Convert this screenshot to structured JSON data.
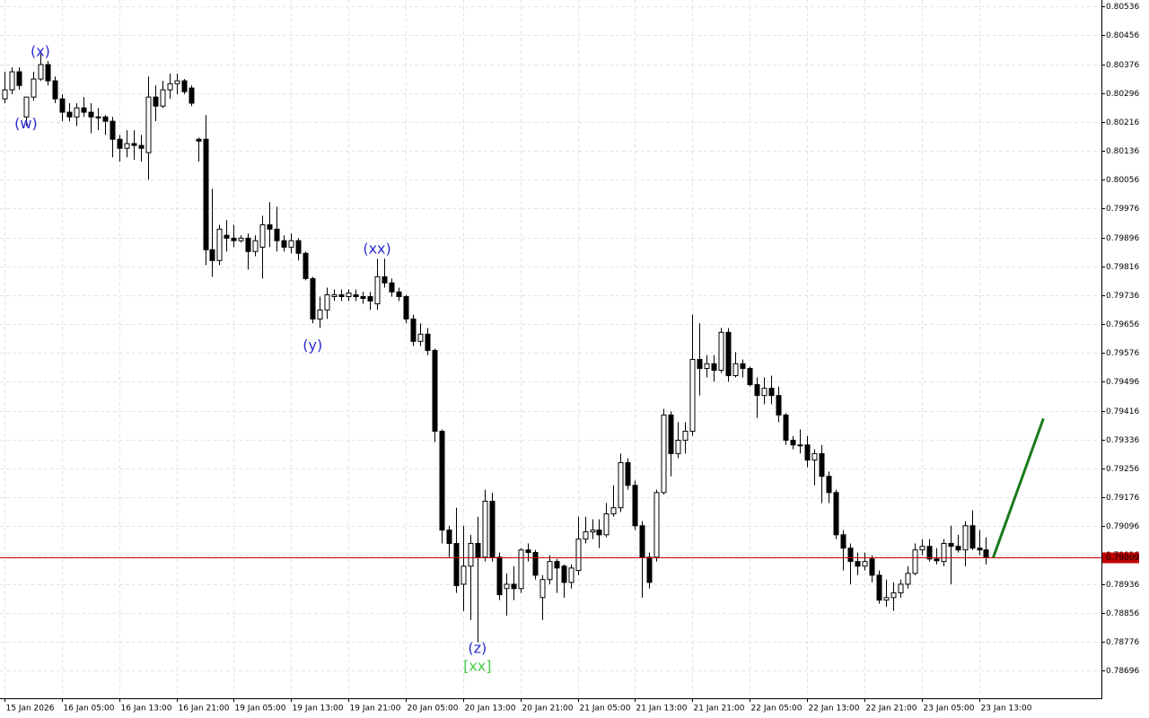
{
  "chart_data": {
    "type": "candlestick",
    "xlim": [
      -0.63,
      153.1
    ],
    "ylim": [
      0.78619,
      0.80554
    ],
    "xticks": [
      {
        "value": 0,
        "label": "15 Jan 2026"
      },
      {
        "value": 8,
        "label": "16 Jan 05:00"
      },
      {
        "value": 16,
        "label": "16 Jan 13:00"
      },
      {
        "value": 24,
        "label": "16 Jan 21:00"
      },
      {
        "value": 32,
        "label": "19 Jan 05:00"
      },
      {
        "value": 40,
        "label": "19 Jan 13:00"
      },
      {
        "value": 48,
        "label": "19 Jan 21:00"
      },
      {
        "value": 56,
        "label": "20 Jan 05:00"
      },
      {
        "value": 64,
        "label": "20 Jan 13:00"
      },
      {
        "value": 72,
        "label": "20 Jan 21:00"
      },
      {
        "value": 80,
        "label": "21 Jan 05:00"
      },
      {
        "value": 88,
        "label": "21 Jan 13:00"
      },
      {
        "value": 96,
        "label": "21 Jan 21:00"
      },
      {
        "value": 104,
        "label": "22 Jan 05:00"
      },
      {
        "value": 112,
        "label": "22 Jan 13:00"
      },
      {
        "value": 120,
        "label": "22 Jan 21:00"
      },
      {
        "value": 128,
        "label": "23 Jan 05:00"
      },
      {
        "value": 136,
        "label": "23 Jan 13:00"
      }
    ],
    "yticks": [
      0.80536,
      0.80456,
      0.80376,
      0.80296,
      0.80216,
      0.80136,
      0.80056,
      0.79976,
      0.79896,
      0.79816,
      0.79736,
      0.79656,
      0.79576,
      0.79496,
      0.79416,
      0.79336,
      0.79256,
      0.79176,
      0.79096,
      0.79016,
      0.78936,
      0.78856,
      0.78776,
      0.78696
    ],
    "grid": true,
    "up_color": "#ffffff",
    "down_color": "#000000",
    "open": [
      0.8028,
      0.80305,
      0.80355,
      0.8023,
      0.80285,
      0.80335,
      0.80375,
      0.8033,
      0.8028,
      0.80243,
      0.8023,
      0.80255,
      0.80243,
      0.8023,
      0.8023,
      0.80218,
      0.80168,
      0.80143,
      0.80156,
      0.80151,
      0.80131,
      0.80285,
      0.8026,
      0.80305,
      0.80322,
      0.8033,
      0.8031,
      0.80168,
      0.80168,
      0.79862,
      0.79832,
      0.79902,
      0.79894,
      0.79887,
      0.79894,
      0.79857,
      0.79869,
      0.79931,
      0.79919,
      0.79887,
      0.79869,
      0.79887,
      0.79852,
      0.79782,
      0.7967,
      0.79695,
      0.79732,
      0.79737,
      0.79732,
      0.79737,
      0.79732,
      0.79732,
      0.79712,
      0.79787,
      0.7977,
      0.79745,
      0.79732,
      0.7967,
      0.79608,
      0.79628,
      0.79583,
      0.79359,
      0.79085,
      0.79048,
      0.78935,
      0.78985,
      0.79048,
      0.7901,
      0.79165,
      0.7901,
      0.78923,
      0.78935,
      0.78923,
      0.7903,
      0.79023,
      0.78898,
      0.78948,
      0.78998,
      0.78985,
      0.7894,
      0.78973,
      0.7906,
      0.7908,
      0.79085,
      0.79072,
      0.7913,
      0.79147,
      0.79272,
      0.79209,
      0.79097,
      0.7901,
      0.7901,
      0.79189,
      0.79404,
      0.79297,
      0.79334,
      0.79359,
      0.79558,
      0.79533,
      0.79546,
      0.79528,
      0.79633,
      0.79513,
      0.79546,
      0.79533,
      0.79488,
      0.79458,
      0.79478,
      0.79458,
      0.79404,
      0.79334,
      0.79321,
      0.79321,
      0.79279,
      0.79297,
      0.79234,
      0.79189,
      0.79072,
      0.79035,
      0.78998,
      0.78985,
      0.79005,
      0.7896,
      0.78891,
      0.78898,
      0.78911,
      0.78935,
      0.78965,
      0.7903,
      0.7904,
      0.79005,
      0.78998,
      0.79048,
      0.7904,
      0.7903,
      0.79097,
      0.79035,
      0.7903
    ],
    "high": [
      0.80355,
      0.80367,
      0.80367,
      0.80285,
      0.80355,
      0.80405,
      0.80385,
      0.80342,
      0.80293,
      0.80268,
      0.80268,
      0.80285,
      0.80268,
      0.80255,
      0.80235,
      0.8023,
      0.8018,
      0.80193,
      0.80193,
      0.8018,
      0.80342,
      0.80317,
      0.8033,
      0.8035,
      0.8035,
      0.80335,
      0.80317,
      0.80173,
      0.80235,
      0.80031,
      0.79931,
      0.79944,
      0.79931,
      0.79902,
      0.79907,
      0.79902,
      0.79956,
      0.79994,
      0.79981,
      0.79902,
      0.79907,
      0.79894,
      0.79857,
      0.79787,
      0.79732,
      0.79757,
      0.79752,
      0.79752,
      0.79752,
      0.79752,
      0.79745,
      0.79745,
      0.79837,
      0.79837,
      0.79782,
      0.79757,
      0.79737,
      0.79682,
      0.79658,
      0.79645,
      0.79588,
      0.79364,
      0.79097,
      0.79147,
      0.79097,
      0.79072,
      0.79122,
      0.79197,
      0.79189,
      0.79023,
      0.78965,
      0.78985,
      0.79035,
      0.79048,
      0.7903,
      0.7896,
      0.79015,
      0.79005,
      0.7899,
      0.7899,
      0.79122,
      0.79122,
      0.79115,
      0.79115,
      0.7916,
      0.79209,
      0.79297,
      0.79284,
      0.79222,
      0.7911,
      0.79023,
      0.79197,
      0.79421,
      0.79414,
      0.79384,
      0.79384,
      0.79682,
      0.79658,
      0.7957,
      0.7957,
      0.79645,
      0.79645,
      0.79578,
      0.79558,
      0.79538,
      0.79508,
      0.79508,
      0.79513,
      0.79483,
      0.79409,
      0.79346,
      0.79364,
      0.79346,
      0.79309,
      0.79321,
      0.79247,
      0.79197,
      0.79085,
      0.79048,
      0.79023,
      0.79023,
      0.79015,
      0.78973,
      0.78948,
      0.7894,
      0.78948,
      0.78985,
      0.79048,
      0.7906,
      0.7906,
      0.79035,
      0.7906,
      0.79097,
      0.79072,
      0.7911,
      0.7914,
      0.79085,
      0.79065
    ],
    "low": [
      0.80268,
      0.80293,
      0.80305,
      0.80205,
      0.80275,
      0.8033,
      0.80317,
      0.80268,
      0.80218,
      0.80218,
      0.80205,
      0.8023,
      0.80185,
      0.80193,
      0.8018,
      0.80118,
      0.80106,
      0.80118,
      0.80111,
      0.80106,
      0.80056,
      0.80218,
      0.80255,
      0.8028,
      0.80293,
      0.80293,
      0.8026,
      0.80106,
      0.79819,
      0.79787,
      0.79819,
      0.79857,
      0.79869,
      0.79882,
      0.79807,
      0.79844,
      0.79782,
      0.79869,
      0.79857,
      0.79857,
      0.79852,
      0.79832,
      0.79777,
      0.79658,
      0.79645,
      0.7967,
      0.7972,
      0.7972,
      0.7972,
      0.7972,
      0.79712,
      0.79695,
      0.79695,
      0.79757,
      0.79732,
      0.7972,
      0.79658,
      0.79595,
      0.79595,
      0.7957,
      0.79329,
      0.79048,
      0.7901,
      0.78911,
      0.78861,
      0.78836,
      0.78774,
      0.78998,
      0.78998,
      0.78891,
      0.78848,
      0.78891,
      0.78911,
      0.78998,
      0.78948,
      0.78836,
      0.78935,
      0.78911,
      0.78898,
      0.78923,
      0.7896,
      0.79048,
      0.7906,
      0.79035,
      0.79065,
      0.79122,
      0.79135,
      0.79197,
      0.79085,
      0.78898,
      0.78923,
      0.78998,
      0.79184,
      0.79234,
      0.79284,
      0.79297,
      0.79346,
      0.79458,
      0.79508,
      0.79496,
      0.79521,
      0.79496,
      0.79508,
      0.79508,
      0.79483,
      0.79396,
      0.79434,
      0.79434,
      0.79384,
      0.79321,
      0.79309,
      0.79297,
      0.79259,
      0.79209,
      0.7916,
      0.7916,
      0.7906,
      0.78973,
      0.78935,
      0.7896,
      0.78973,
      0.7894,
      0.78881,
      0.78873,
      0.78861,
      0.78898,
      0.78923,
      0.7896,
      0.79015,
      0.78998,
      0.7899,
      0.78985,
      0.78935,
      0.79023,
      0.78985,
      0.7903,
      0.79015,
      0.7899
    ],
    "close": [
      0.80305,
      0.80355,
      0.80317,
      0.80285,
      0.80335,
      0.80375,
      0.8033,
      0.8028,
      0.80243,
      0.8023,
      0.80255,
      0.80243,
      0.8023,
      0.80228,
      0.80218,
      0.80168,
      0.80143,
      0.80156,
      0.80151,
      0.80143,
      0.80285,
      0.8026,
      0.80305,
      0.80322,
      0.8033,
      0.803,
      0.80268,
      0.80163,
      0.79862,
      0.79832,
      0.79919,
      0.79894,
      0.79887,
      0.79894,
      0.79857,
      0.79887,
      0.79931,
      0.79919,
      0.79887,
      0.79869,
      0.79887,
      0.79852,
      0.79782,
      0.7967,
      0.79695,
      0.79737,
      0.79737,
      0.79732,
      0.79742,
      0.79732,
      0.79727,
      0.7972,
      0.79787,
      0.7977,
      0.79745,
      0.79732,
      0.7967,
      0.79608,
      0.79628,
      0.79583,
      0.79359,
      0.79085,
      0.79048,
      0.78931,
      0.78985,
      0.79048,
      0.7901,
      0.79165,
      0.7901,
      0.78906,
      0.78935,
      0.78923,
      0.7903,
      0.79023,
      0.7896,
      0.78948,
      0.78998,
      0.7898,
      0.7894,
      0.7898,
      0.7906,
      0.7908,
      0.79085,
      0.79072,
      0.7913,
      0.79147,
      0.79272,
      0.79209,
      0.79097,
      0.7901,
      0.7894,
      0.79189,
      0.79404,
      0.79297,
      0.79334,
      0.79359,
      0.79558,
      0.79533,
      0.79546,
      0.79528,
      0.79633,
      0.79513,
      0.79546,
      0.79533,
      0.79488,
      0.79458,
      0.79478,
      0.79458,
      0.79404,
      0.79334,
      0.79321,
      0.79319,
      0.79279,
      0.79297,
      0.79234,
      0.79189,
      0.79072,
      0.79035,
      0.78998,
      0.78985,
      0.78998,
      0.7896,
      0.78891,
      0.78898,
      0.78911,
      0.78935,
      0.78965,
      0.7903,
      0.7904,
      0.79005,
      0.79,
      0.79048,
      0.7904,
      0.7903,
      0.79097,
      0.79035,
      0.7903,
      0.79009
    ],
    "current_price": {
      "value": 0.79009,
      "color": "#c00000"
    },
    "projection": {
      "x": [
        138,
        145
      ],
      "y": [
        0.79009,
        0.79394
      ],
      "color": "#1a7a1a"
    },
    "annotations": [
      {
        "text": "(w)",
        "index": 3,
        "price": 0.8021,
        "color": "#2a2ad0"
      },
      {
        "text": "(x)",
        "index": 5,
        "price": 0.8041,
        "color": "#2a2ad0"
      },
      {
        "text": "(y)",
        "index": 43,
        "price": 0.79595,
        "color": "#2a2ad0"
      },
      {
        "text": "(xx)",
        "index": 52,
        "price": 0.79862,
        "color": "#2a2ad0"
      },
      {
        "text": "(z)",
        "index": 66,
        "price": 0.78756,
        "color": "#2a2ad0"
      },
      {
        "text": "[xx]",
        "index": 66,
        "price": 0.78706,
        "color": "#44cc44"
      }
    ]
  }
}
